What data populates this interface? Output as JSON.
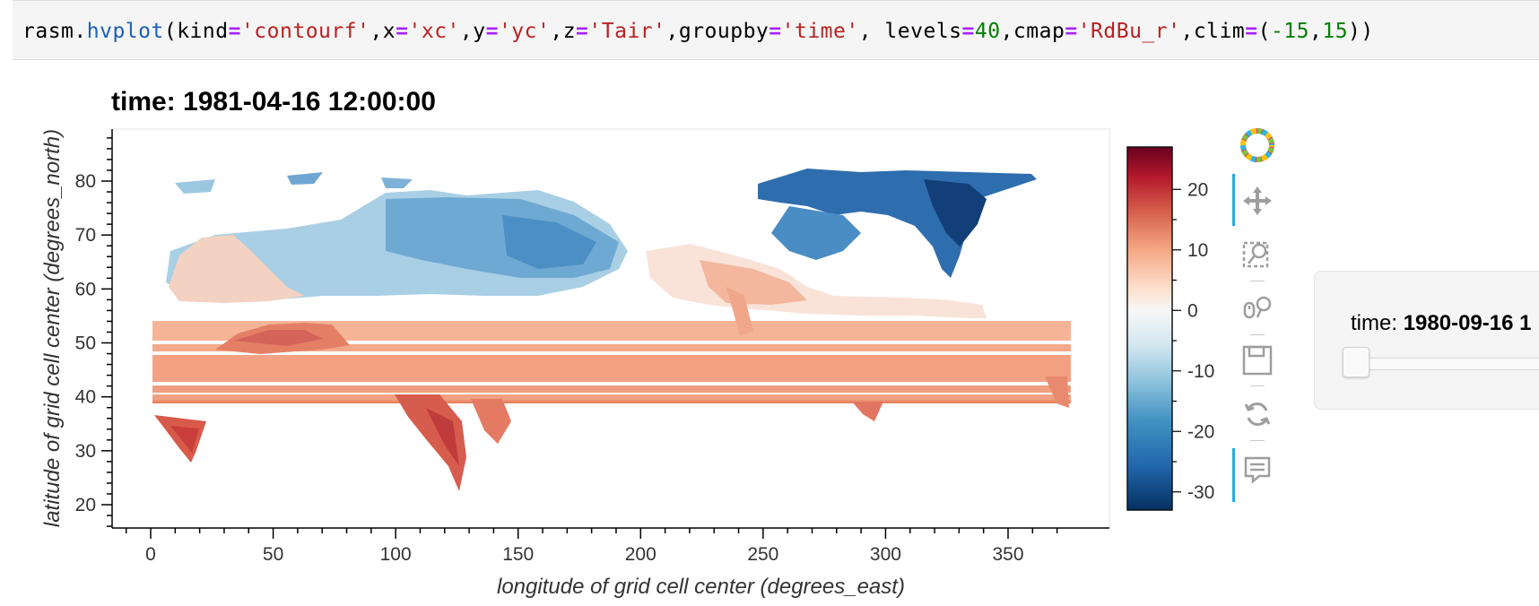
{
  "code": {
    "prefix": "rasm.",
    "fn": "hvplot",
    "p1": "(kind",
    "v_kind": "'contourf'",
    "p2": ",x",
    "v_x": "'xc'",
    "p3": ",y",
    "v_y": "'yc'",
    "p4": ",z",
    "v_z": "'Tair'",
    "p5": ",groupby",
    "v_groupby": "'time'",
    "p6": ", levels",
    "v_levels": "40",
    "p7": ",cmap",
    "v_cmap": "'RdBu_r'",
    "p8": ",clim",
    "p9": "(",
    "v_clim_neg": "-15",
    "p10": ",",
    "v_clim_pos": "15",
    "p11": "))",
    "eq": "="
  },
  "plot": {
    "title": "time: 1981-04-16 12:00:00",
    "xlabel": "longitude of grid cell center (degrees_east)",
    "ylabel": "latitude of grid cell center (degrees_north)"
  },
  "chart_data": {
    "type": "heatmap",
    "title": "time: 1981-04-16 12:00:00",
    "xlabel": "longitude of grid cell center (degrees_east)",
    "ylabel": "latitude of grid cell center (degrees_north)",
    "x_ticks": [
      0,
      50,
      100,
      150,
      200,
      250,
      300,
      350
    ],
    "y_ticks": [
      20,
      30,
      40,
      50,
      60,
      70,
      80
    ],
    "xlim": [
      -10,
      375
    ],
    "ylim": [
      16,
      90
    ],
    "colorbar": {
      "ticks": [
        20,
        10,
        0,
        -10,
        -20,
        -30
      ],
      "range": [
        -33,
        27
      ],
      "cmap": "RdBu_r",
      "colors": [
        "#67001f",
        "#b2182b",
        "#d6604d",
        "#f4a582",
        "#fddbc7",
        "#f7f7f7",
        "#d1e5f0",
        "#92c5de",
        "#4393c3",
        "#2166ac",
        "#053061"
      ]
    },
    "grid": false
  },
  "widget": {
    "label": "time: ",
    "value": "1980-09-16 1"
  },
  "toolbar": {
    "tools": [
      "logo-icon",
      "pan-icon",
      "box-zoom-icon",
      "wheel-zoom-icon",
      "save-icon",
      "reset-icon",
      "hover-icon"
    ]
  }
}
